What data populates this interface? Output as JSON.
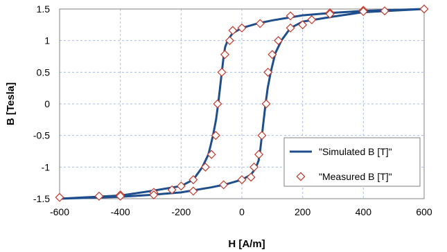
{
  "chart_data": {
    "type": "line",
    "xlabel": "H [A/m]",
    "ylabel": "B [Tesla]",
    "xlim": [
      -600,
      600
    ],
    "ylim": [
      -1.5,
      1.5
    ],
    "x_ticks": [
      -600,
      -400,
      -200,
      0,
      200,
      400,
      600
    ],
    "x_tick_labels": [
      "-600",
      "-400",
      "-200",
      "0",
      "200",
      "400",
      "600"
    ],
    "y_ticks": [
      -1.5,
      -1,
      -0.5,
      0,
      0.5,
      1,
      1.5
    ],
    "y_tick_labels": [
      "-1.5",
      "-1",
      "-0.5",
      "0",
      "0.5",
      "1",
      "1.5"
    ],
    "grid": true,
    "legend_position": "bottom-right",
    "colors": {
      "simulated": "#1f4e8c",
      "measured": "#c0392b",
      "grid": "#a8bde0"
    },
    "series": [
      {
        "name": "\"Simulated B [T]\"",
        "style": "line",
        "x": [
          -600,
          -400,
          -300,
          -200,
          -160,
          -130,
          -110,
          -95,
          -85,
          -78,
          -72,
          -66,
          -60,
          -55,
          -45,
          -30,
          0,
          50,
          100,
          200,
          300,
          400,
          600,
          400,
          300,
          200,
          160,
          130,
          110,
          95,
          85,
          78,
          72,
          66,
          60,
          55,
          45,
          30,
          0,
          -50,
          -100,
          -200,
          -300,
          -400,
          -600
        ],
        "y": [
          -1.5,
          -1.45,
          -1.38,
          -1.3,
          -1.2,
          -1.0,
          -0.8,
          -0.5,
          -0.25,
          0.0,
          0.25,
          0.5,
          0.75,
          0.9,
          1.02,
          1.12,
          1.2,
          1.27,
          1.32,
          1.4,
          1.44,
          1.47,
          1.5,
          1.45,
          1.38,
          1.3,
          1.2,
          1.0,
          0.8,
          0.5,
          0.25,
          0.0,
          -0.25,
          -0.5,
          -0.75,
          -0.9,
          -1.02,
          -1.12,
          -1.2,
          -1.27,
          -1.32,
          -1.4,
          -1.44,
          -1.47,
          -1.5
        ]
      },
      {
        "name": "\"Measured B [T]\"",
        "style": "marker",
        "x": [
          -600,
          -470,
          -400,
          -290,
          -230,
          -200,
          -160,
          -120,
          -100,
          -86,
          -80,
          -66,
          -56,
          -40,
          -30,
          0,
          60,
          160,
          290,
          400,
          600,
          470,
          400,
          290,
          230,
          200,
          160,
          120,
          100,
          86,
          80,
          66,
          56,
          40,
          30,
          0,
          -60,
          -160,
          -290,
          -400
        ],
        "y": [
          -1.48,
          -1.46,
          -1.44,
          -1.4,
          -1.36,
          -1.3,
          -1.2,
          -1.0,
          -0.8,
          -0.5,
          0.0,
          0.5,
          0.78,
          1.0,
          1.16,
          1.2,
          1.27,
          1.39,
          1.44,
          1.48,
          1.5,
          1.47,
          1.46,
          1.42,
          1.33,
          1.25,
          1.2,
          1.0,
          0.78,
          0.5,
          0.0,
          -0.5,
          -0.8,
          -1.0,
          -1.16,
          -1.2,
          -1.28,
          -1.38,
          -1.44,
          -1.46
        ]
      }
    ]
  }
}
